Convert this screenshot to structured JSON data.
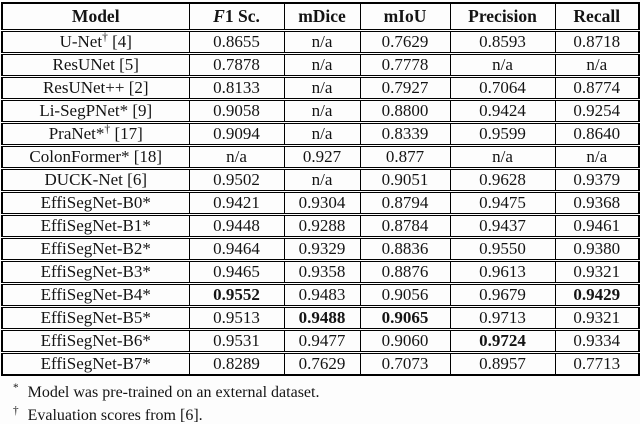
{
  "colors": {
    "background": "#fdfdfd",
    "border": "#000000",
    "text": "#141414"
  },
  "table": {
    "headers": [
      {
        "italic": "",
        "text": "Model"
      },
      {
        "italic": "F",
        "text": "1 Sc."
      },
      {
        "italic": "",
        "text": "mDice"
      },
      {
        "italic": "",
        "text": "mIoU"
      },
      {
        "italic": "",
        "text": "Precision"
      },
      {
        "italic": "",
        "text": "Recall"
      }
    ],
    "rows": [
      {
        "model": {
          "name": "U-Net",
          "sup": "†",
          "ref": "[4]"
        },
        "values": [
          "0.8655",
          "n/a",
          "0.7629",
          "0.8593",
          "0.8718"
        ],
        "bold": [
          false,
          false,
          false,
          false,
          false
        ]
      },
      {
        "model": {
          "name": "ResUNet",
          "sup": "",
          "ref": "[5]"
        },
        "values": [
          "0.7878",
          "n/a",
          "0.7778",
          "n/a",
          "n/a"
        ],
        "bold": [
          false,
          false,
          false,
          false,
          false
        ]
      },
      {
        "model": {
          "name": "ResUNet++",
          "sup": "",
          "ref": "[2]"
        },
        "values": [
          "0.8133",
          "n/a",
          "0.7927",
          "0.7064",
          "0.8774"
        ],
        "bold": [
          false,
          false,
          false,
          false,
          false
        ]
      },
      {
        "model": {
          "name": "Li-SegPNet*",
          "sup": "",
          "ref": "[9]"
        },
        "values": [
          "0.9058",
          "n/a",
          "0.8800",
          "0.9424",
          "0.9254"
        ],
        "bold": [
          false,
          false,
          false,
          false,
          false
        ]
      },
      {
        "model": {
          "name": "PraNet*",
          "sup": "†",
          "ref": "[17]"
        },
        "values": [
          "0.9094",
          "n/a",
          "0.8339",
          "0.9599",
          "0.8640"
        ],
        "bold": [
          false,
          false,
          false,
          false,
          false
        ]
      },
      {
        "model": {
          "name": "ColonFormer*",
          "sup": "",
          "ref": "[18]"
        },
        "values": [
          "n/a",
          "0.927",
          "0.877",
          "n/a",
          "n/a"
        ],
        "bold": [
          false,
          false,
          false,
          false,
          false
        ]
      },
      {
        "model": {
          "name": "DUCK-Net",
          "sup": "",
          "ref": "[6]"
        },
        "values": [
          "0.9502",
          "n/a",
          "0.9051",
          "0.9628",
          "0.9379"
        ],
        "bold": [
          false,
          false,
          false,
          false,
          false
        ]
      },
      {
        "model": {
          "name": "EffiSegNet-B0*",
          "sup": "",
          "ref": ""
        },
        "values": [
          "0.9421",
          "0.9304",
          "0.8794",
          "0.9475",
          "0.9368"
        ],
        "bold": [
          false,
          false,
          false,
          false,
          false
        ]
      },
      {
        "model": {
          "name": "EffiSegNet-B1*",
          "sup": "",
          "ref": ""
        },
        "values": [
          "0.9448",
          "0.9288",
          "0.8784",
          "0.9437",
          "0.9461"
        ],
        "bold": [
          false,
          false,
          false,
          false,
          false
        ]
      },
      {
        "model": {
          "name": "EffiSegNet-B2*",
          "sup": "",
          "ref": ""
        },
        "values": [
          "0.9464",
          "0.9329",
          "0.8836",
          "0.9550",
          "0.9380"
        ],
        "bold": [
          false,
          false,
          false,
          false,
          false
        ]
      },
      {
        "model": {
          "name": "EffiSegNet-B3*",
          "sup": "",
          "ref": ""
        },
        "values": [
          "0.9465",
          "0.9358",
          "0.8876",
          "0.9613",
          "0.9321"
        ],
        "bold": [
          false,
          false,
          false,
          false,
          false
        ]
      },
      {
        "model": {
          "name": "EffiSegNet-B4*",
          "sup": "",
          "ref": ""
        },
        "values": [
          "0.9552",
          "0.9483",
          "0.9056",
          "0.9679",
          "0.9429"
        ],
        "bold": [
          true,
          false,
          false,
          false,
          true
        ]
      },
      {
        "model": {
          "name": "EffiSegNet-B5*",
          "sup": "",
          "ref": ""
        },
        "values": [
          "0.9513",
          "0.9488",
          "0.9065",
          "0.9713",
          "0.9321"
        ],
        "bold": [
          false,
          true,
          true,
          false,
          false
        ]
      },
      {
        "model": {
          "name": "EffiSegNet-B6*",
          "sup": "",
          "ref": ""
        },
        "values": [
          "0.9531",
          "0.9477",
          "0.9060",
          "0.9724",
          "0.9334"
        ],
        "bold": [
          false,
          false,
          false,
          true,
          false
        ]
      },
      {
        "model": {
          "name": "EffiSegNet-B7*",
          "sup": "",
          "ref": ""
        },
        "values": [
          "0.8289",
          "0.7629",
          "0.7073",
          "0.8957",
          "0.7713"
        ],
        "bold": [
          false,
          false,
          false,
          false,
          false
        ]
      }
    ]
  },
  "footnotes": [
    {
      "marker": "*",
      "text": "Model was pre-trained on an external dataset."
    },
    {
      "marker": "†",
      "text": "Evaluation scores from [6]."
    }
  ]
}
